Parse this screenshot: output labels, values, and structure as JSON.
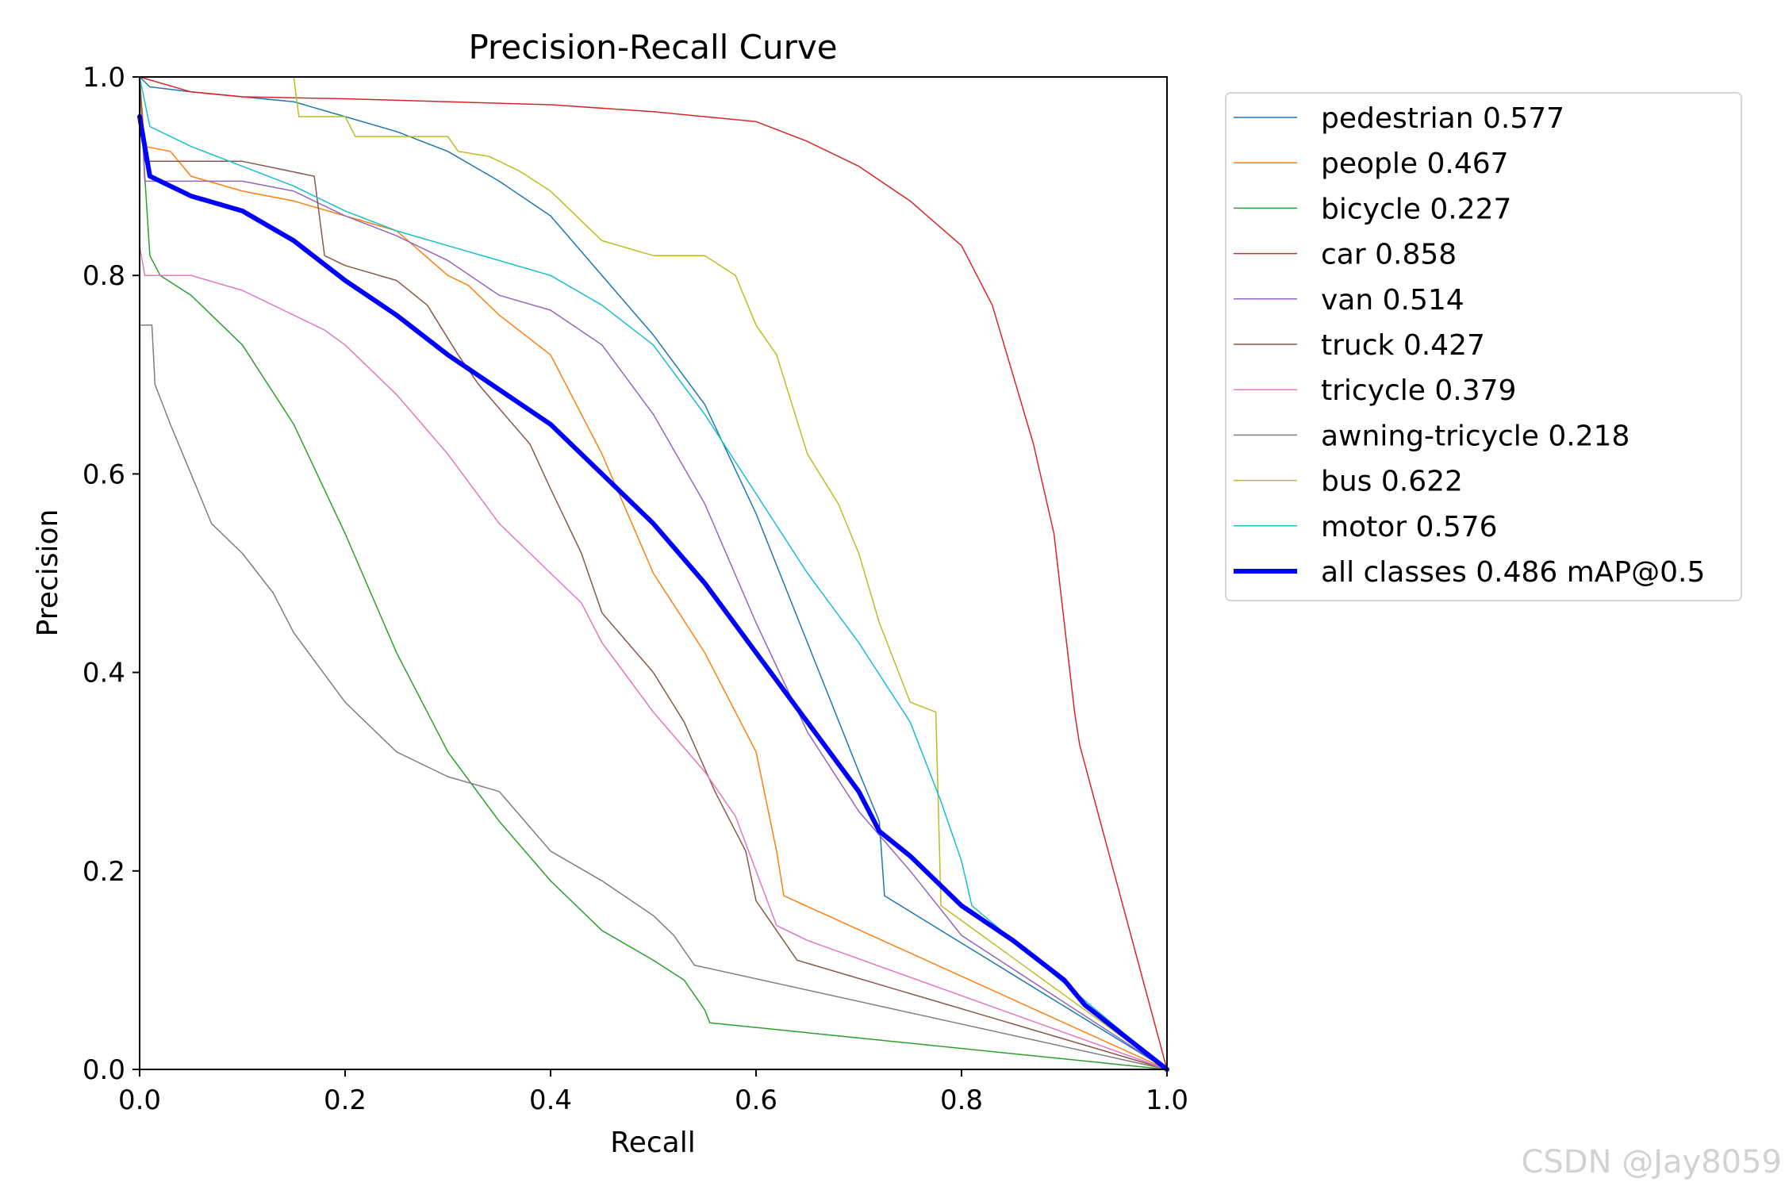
{
  "watermark": "CSDN @Jay8059",
  "chart_data": {
    "type": "line",
    "title": "Precision-Recall Curve",
    "xlabel": "Recall",
    "ylabel": "Precision",
    "xlim": [
      0.0,
      1.0
    ],
    "ylim": [
      0.0,
      1.0
    ],
    "xticks": [
      "0.0",
      "0.2",
      "0.4",
      "0.6",
      "0.8",
      "1.0"
    ],
    "yticks": [
      "0.0",
      "0.2",
      "0.4",
      "0.6",
      "0.8",
      "1.0"
    ],
    "grid": false,
    "legend_position": "outside-right",
    "series": [
      {
        "name": "pedestrian 0.577",
        "color": "#1f77b4",
        "width": 1.5,
        "points": [
          [
            0,
            1.0
          ],
          [
            0.01,
            0.99
          ],
          [
            0.05,
            0.985
          ],
          [
            0.1,
            0.98
          ],
          [
            0.15,
            0.975
          ],
          [
            0.2,
            0.96
          ],
          [
            0.25,
            0.945
          ],
          [
            0.3,
            0.925
          ],
          [
            0.35,
            0.895
          ],
          [
            0.4,
            0.86
          ],
          [
            0.45,
            0.8
          ],
          [
            0.5,
            0.74
          ],
          [
            0.55,
            0.67
          ],
          [
            0.6,
            0.56
          ],
          [
            0.65,
            0.43
          ],
          [
            0.7,
            0.3
          ],
          [
            0.72,
            0.25
          ],
          [
            0.725,
            0.175
          ],
          [
            1.0,
            0.0
          ]
        ]
      },
      {
        "name": "people 0.467",
        "color": "#ff7f0e",
        "width": 1.5,
        "points": [
          [
            0,
            1.0
          ],
          [
            0.005,
            0.93
          ],
          [
            0.03,
            0.925
          ],
          [
            0.05,
            0.9
          ],
          [
            0.1,
            0.885
          ],
          [
            0.15,
            0.875
          ],
          [
            0.2,
            0.86
          ],
          [
            0.25,
            0.845
          ],
          [
            0.3,
            0.8
          ],
          [
            0.32,
            0.79
          ],
          [
            0.35,
            0.76
          ],
          [
            0.4,
            0.72
          ],
          [
            0.45,
            0.62
          ],
          [
            0.5,
            0.5
          ],
          [
            0.55,
            0.42
          ],
          [
            0.6,
            0.32
          ],
          [
            0.62,
            0.22
          ],
          [
            0.627,
            0.175
          ],
          [
            1.0,
            0.0
          ]
        ]
      },
      {
        "name": "bicycle 0.227",
        "color": "#2ca02c",
        "width": 1.5,
        "points": [
          [
            0,
            1.0
          ],
          [
            0.005,
            0.9
          ],
          [
            0.01,
            0.82
          ],
          [
            0.02,
            0.8
          ],
          [
            0.05,
            0.78
          ],
          [
            0.1,
            0.73
          ],
          [
            0.15,
            0.65
          ],
          [
            0.2,
            0.54
          ],
          [
            0.25,
            0.42
          ],
          [
            0.3,
            0.32
          ],
          [
            0.35,
            0.25
          ],
          [
            0.4,
            0.19
          ],
          [
            0.45,
            0.14
          ],
          [
            0.5,
            0.11
          ],
          [
            0.53,
            0.09
          ],
          [
            0.55,
            0.06
          ],
          [
            0.555,
            0.047
          ],
          [
            1.0,
            0.0
          ]
        ]
      },
      {
        "name": "car 0.858",
        "color": "#d62728",
        "width": 1.5,
        "points": [
          [
            0,
            1.0
          ],
          [
            0.05,
            0.985
          ],
          [
            0.1,
            0.98
          ],
          [
            0.2,
            0.978
          ],
          [
            0.3,
            0.975
          ],
          [
            0.4,
            0.972
          ],
          [
            0.5,
            0.965
          ],
          [
            0.6,
            0.955
          ],
          [
            0.65,
            0.935
          ],
          [
            0.7,
            0.91
          ],
          [
            0.75,
            0.875
          ],
          [
            0.8,
            0.83
          ],
          [
            0.83,
            0.77
          ],
          [
            0.85,
            0.7
          ],
          [
            0.87,
            0.63
          ],
          [
            0.89,
            0.54
          ],
          [
            0.9,
            0.45
          ],
          [
            0.91,
            0.36
          ],
          [
            0.915,
            0.327
          ],
          [
            1.0,
            0.0
          ]
        ]
      },
      {
        "name": "van 0.514",
        "color": "#9467bd",
        "width": 1.5,
        "points": [
          [
            0,
            1.0
          ],
          [
            0.005,
            0.895
          ],
          [
            0.05,
            0.895
          ],
          [
            0.1,
            0.895
          ],
          [
            0.15,
            0.885
          ],
          [
            0.2,
            0.86
          ],
          [
            0.25,
            0.84
          ],
          [
            0.3,
            0.815
          ],
          [
            0.35,
            0.78
          ],
          [
            0.4,
            0.765
          ],
          [
            0.45,
            0.73
          ],
          [
            0.5,
            0.66
          ],
          [
            0.55,
            0.57
          ],
          [
            0.6,
            0.45
          ],
          [
            0.65,
            0.34
          ],
          [
            0.7,
            0.26
          ],
          [
            0.75,
            0.2
          ],
          [
            0.8,
            0.135
          ],
          [
            1.0,
            0.0
          ]
        ]
      },
      {
        "name": "truck 0.427",
        "color": "#8c564b",
        "width": 1.5,
        "points": [
          [
            0,
            1.0
          ],
          [
            0.005,
            0.915
          ],
          [
            0.1,
            0.915
          ],
          [
            0.17,
            0.9
          ],
          [
            0.18,
            0.82
          ],
          [
            0.2,
            0.81
          ],
          [
            0.25,
            0.795
          ],
          [
            0.28,
            0.77
          ],
          [
            0.31,
            0.72
          ],
          [
            0.33,
            0.69
          ],
          [
            0.38,
            0.63
          ],
          [
            0.4,
            0.585
          ],
          [
            0.43,
            0.52
          ],
          [
            0.45,
            0.46
          ],
          [
            0.5,
            0.4
          ],
          [
            0.53,
            0.35
          ],
          [
            0.56,
            0.28
          ],
          [
            0.59,
            0.22
          ],
          [
            0.6,
            0.17
          ],
          [
            0.62,
            0.14
          ],
          [
            0.64,
            0.11
          ],
          [
            1.0,
            0.0
          ]
        ]
      },
      {
        "name": "tricycle 0.379",
        "color": "#e377c2",
        "width": 1.5,
        "points": [
          [
            0,
            0.83
          ],
          [
            0.005,
            0.8
          ],
          [
            0.05,
            0.8
          ],
          [
            0.1,
            0.785
          ],
          [
            0.14,
            0.765
          ],
          [
            0.18,
            0.745
          ],
          [
            0.2,
            0.73
          ],
          [
            0.25,
            0.68
          ],
          [
            0.3,
            0.62
          ],
          [
            0.35,
            0.55
          ],
          [
            0.4,
            0.5
          ],
          [
            0.43,
            0.47
          ],
          [
            0.45,
            0.43
          ],
          [
            0.5,
            0.36
          ],
          [
            0.55,
            0.3
          ],
          [
            0.58,
            0.255
          ],
          [
            0.6,
            0.2
          ],
          [
            0.62,
            0.145
          ],
          [
            0.65,
            0.13
          ],
          [
            1.0,
            0.0
          ]
        ]
      },
      {
        "name": "awning-tricycle 0.218",
        "color": "#7f7f7f",
        "width": 1.5,
        "points": [
          [
            0,
            0.75
          ],
          [
            0.012,
            0.75
          ],
          [
            0.015,
            0.69
          ],
          [
            0.03,
            0.65
          ],
          [
            0.05,
            0.6
          ],
          [
            0.07,
            0.55
          ],
          [
            0.1,
            0.52
          ],
          [
            0.13,
            0.48
          ],
          [
            0.15,
            0.44
          ],
          [
            0.2,
            0.37
          ],
          [
            0.25,
            0.32
          ],
          [
            0.3,
            0.295
          ],
          [
            0.35,
            0.28
          ],
          [
            0.4,
            0.22
          ],
          [
            0.45,
            0.19
          ],
          [
            0.5,
            0.155
          ],
          [
            0.52,
            0.135
          ],
          [
            0.54,
            0.105
          ],
          [
            1.0,
            0.0
          ]
        ]
      },
      {
        "name": "bus 0.622",
        "color": "#bcbd22",
        "width": 1.5,
        "points": [
          [
            0,
            1.0
          ],
          [
            0.15,
            1.0
          ],
          [
            0.155,
            0.96
          ],
          [
            0.2,
            0.96
          ],
          [
            0.21,
            0.94
          ],
          [
            0.3,
            0.94
          ],
          [
            0.31,
            0.925
          ],
          [
            0.34,
            0.92
          ],
          [
            0.37,
            0.905
          ],
          [
            0.4,
            0.885
          ],
          [
            0.45,
            0.835
          ],
          [
            0.5,
            0.82
          ],
          [
            0.55,
            0.82
          ],
          [
            0.58,
            0.8
          ],
          [
            0.6,
            0.75
          ],
          [
            0.62,
            0.72
          ],
          [
            0.65,
            0.62
          ],
          [
            0.68,
            0.57
          ],
          [
            0.7,
            0.52
          ],
          [
            0.72,
            0.45
          ],
          [
            0.75,
            0.37
          ],
          [
            0.775,
            0.36
          ],
          [
            0.78,
            0.165
          ],
          [
            1.0,
            0.0
          ]
        ]
      },
      {
        "name": "motor 0.576",
        "color": "#17becf",
        "width": 1.5,
        "points": [
          [
            0,
            1.0
          ],
          [
            0.01,
            0.95
          ],
          [
            0.05,
            0.93
          ],
          [
            0.1,
            0.91
          ],
          [
            0.15,
            0.89
          ],
          [
            0.2,
            0.865
          ],
          [
            0.25,
            0.845
          ],
          [
            0.3,
            0.83
          ],
          [
            0.35,
            0.815
          ],
          [
            0.4,
            0.8
          ],
          [
            0.45,
            0.77
          ],
          [
            0.5,
            0.73
          ],
          [
            0.55,
            0.66
          ],
          [
            0.6,
            0.58
          ],
          [
            0.65,
            0.5
          ],
          [
            0.7,
            0.43
          ],
          [
            0.75,
            0.35
          ],
          [
            0.78,
            0.27
          ],
          [
            0.8,
            0.21
          ],
          [
            0.81,
            0.165
          ],
          [
            1.0,
            0.0
          ]
        ]
      },
      {
        "name": "all classes 0.486 mAP@0.5",
        "color": "#0000ff",
        "width": 6,
        "points": [
          [
            0,
            0.96
          ],
          [
            0.01,
            0.9
          ],
          [
            0.05,
            0.88
          ],
          [
            0.1,
            0.865
          ],
          [
            0.15,
            0.835
          ],
          [
            0.2,
            0.795
          ],
          [
            0.25,
            0.76
          ],
          [
            0.3,
            0.72
          ],
          [
            0.35,
            0.685
          ],
          [
            0.4,
            0.65
          ],
          [
            0.45,
            0.6
          ],
          [
            0.5,
            0.55
          ],
          [
            0.55,
            0.49
          ],
          [
            0.6,
            0.42
          ],
          [
            0.65,
            0.35
          ],
          [
            0.7,
            0.28
          ],
          [
            0.72,
            0.24
          ],
          [
            0.75,
            0.215
          ],
          [
            0.8,
            0.165
          ],
          [
            0.85,
            0.13
          ],
          [
            0.9,
            0.09
          ],
          [
            0.92,
            0.065
          ],
          [
            1.0,
            0.0
          ]
        ]
      }
    ]
  }
}
